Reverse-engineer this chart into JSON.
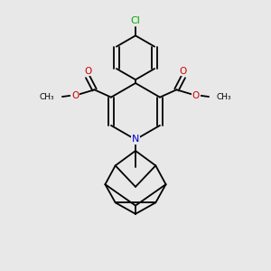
{
  "bg_color": "#e8e8e8",
  "bond_color": "#000000",
  "bond_width": 1.3,
  "atom_colors": {
    "C": "#000000",
    "N": "#0000cc",
    "O": "#cc0000",
    "Cl": "#00aa00"
  },
  "font_size": 7.5,
  "figsize": [
    3.0,
    3.0
  ],
  "dpi": 100
}
